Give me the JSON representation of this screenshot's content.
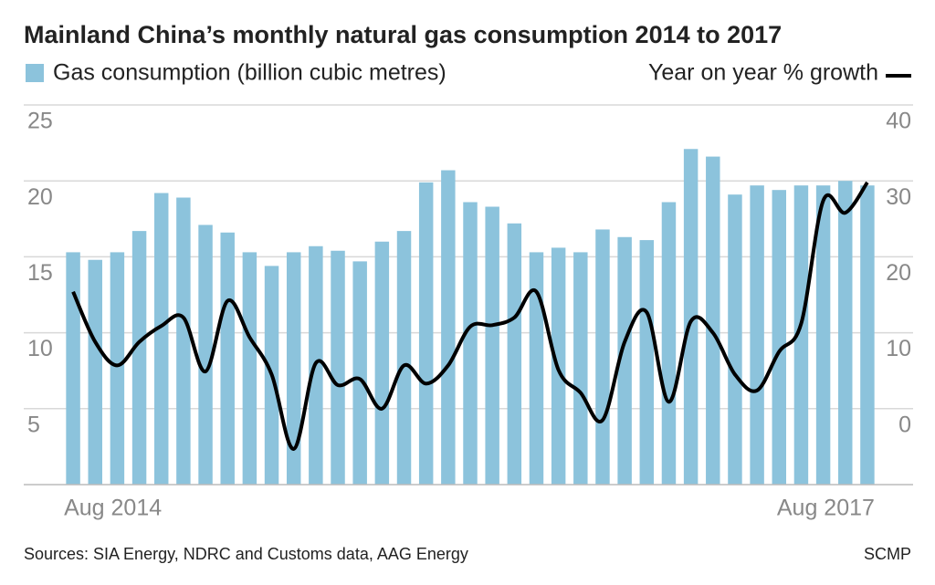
{
  "chart_data": {
    "type": "bar",
    "title": "Mainland China’s monthly natural gas consumption 2014 to 2017",
    "categories": [
      "Aug 2014",
      null,
      null,
      null,
      null,
      null,
      null,
      null,
      null,
      null,
      null,
      null,
      null,
      null,
      null,
      null,
      null,
      null,
      null,
      null,
      null,
      null,
      null,
      null,
      null,
      null,
      null,
      null,
      null,
      null,
      null,
      null,
      null,
      null,
      null,
      null,
      "Aug 2017"
    ],
    "series": [
      {
        "name": "Gas consumption (billion cubic metres)",
        "type": "bar",
        "color": "#8cc3dc",
        "values": [
          15.3,
          14.8,
          15.3,
          16.7,
          19.2,
          18.9,
          17.1,
          16.6,
          15.3,
          14.4,
          15.3,
          15.7,
          15.4,
          14.7,
          16.0,
          16.7,
          19.9,
          20.7,
          18.6,
          18.3,
          17.2,
          15.3,
          15.6,
          15.3,
          16.8,
          16.3,
          16.1,
          18.6,
          22.1,
          21.6,
          19.1,
          19.7,
          19.4,
          19.7,
          19.7,
          20.0,
          19.7
        ]
      },
      {
        "name": "Year on year % growth",
        "type": "line",
        "axis": "y2",
        "color": "#000000",
        "values": [
          15.4,
          8.8,
          5.7,
          8.8,
          10.9,
          12.0,
          4.9,
          14.2,
          9.4,
          4.5,
          -5.3,
          6.0,
          3.1,
          3.9,
          0.0,
          5.7,
          3.3,
          5.7,
          10.8,
          11.0,
          12.0,
          15.4,
          5.1,
          2.1,
          -1.5,
          8.8,
          12.7,
          0.9,
          11.5,
          10.0,
          4.5,
          2.4,
          7.5,
          11.2,
          27.4,
          25.8,
          29.8
        ]
      }
    ],
    "ylim": [
      0,
      25
    ],
    "yticks": [
      5,
      10,
      15,
      20,
      25
    ],
    "y2lim": [
      -10,
      40
    ],
    "y2ticks": [
      0,
      10,
      20,
      30,
      40
    ],
    "grid": true,
    "source": "Sources: SIA Energy, NDRC and Customs data, AAG Energy",
    "credit": "SCMP"
  }
}
